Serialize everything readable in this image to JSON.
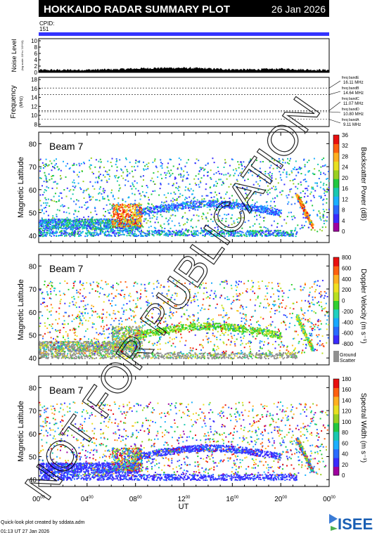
{
  "header": {
    "title": "HOKKAIDO RADAR SUMMARY PLOT",
    "date": "26 Jan 2026",
    "cpid_label": "CPID:",
    "cpid_value": "151"
  },
  "noise_panel": {
    "ylabel": "Noise Level",
    "ylabel_sub": "(log scale: 10^x / 10^10)",
    "yticks": [
      "10",
      "8",
      "6",
      "4",
      "2",
      "0"
    ]
  },
  "freq_panel": {
    "ylabel": "Frequency",
    "unit": "(MHz)",
    "yticks": [
      "18",
      "16",
      "14",
      "12",
      "10",
      "8"
    ],
    "bands": [
      {
        "name": "freq bandE",
        "value": "16.11 MHz"
      },
      {
        "name": "freq bandB",
        "value": "14.64 MHz"
      },
      {
        "name": "freq bandC",
        "value": "11.07 MHz"
      },
      {
        "name": "freq bandD",
        "value": "10.80 MHz"
      },
      {
        "name": "freq bandA",
        "value": "9.11 MHz"
      }
    ]
  },
  "panels": [
    {
      "beam": "Beam  7",
      "ylabel": "Magnetic Latitude",
      "yticks": [
        "80",
        "70",
        "60",
        "50",
        "40"
      ],
      "cbar_label": "Backscatter Power (dB)",
      "cbar_ticks": [
        "36",
        "32",
        "28",
        "24",
        "20",
        "16",
        "12",
        "8",
        "4",
        "0"
      ]
    },
    {
      "beam": "Beam  7",
      "ylabel": "Magnetic Latitude",
      "yticks": [
        "80",
        "70",
        "60",
        "50",
        "40"
      ],
      "cbar_label": "Doppler Velocity (m s⁻¹)",
      "cbar_ticks": [
        "800",
        "600",
        "400",
        "200",
        "0",
        "-200",
        "-400",
        "-600",
        "-800"
      ],
      "ground_scatter": [
        "Ground",
        "Scatter"
      ]
    },
    {
      "beam": "Beam  7",
      "ylabel": "Magnetic Latitude",
      "yticks": [
        "80",
        "70",
        "60",
        "50",
        "40"
      ],
      "cbar_label": "Spectral Width (m s⁻¹)",
      "cbar_ticks": [
        "180",
        "160",
        "140",
        "120",
        "100",
        "80",
        "60",
        "40",
        "20",
        "0"
      ]
    }
  ],
  "xaxis": {
    "label": "UT",
    "ticks": [
      {
        "h": "00",
        "m": "00"
      },
      {
        "h": "04",
        "m": "00"
      },
      {
        "h": "08",
        "m": "00"
      },
      {
        "h": "12",
        "m": "00"
      },
      {
        "h": "16",
        "m": "00"
      },
      {
        "h": "20",
        "m": "00"
      },
      {
        "h": "00",
        "m": "00"
      }
    ]
  },
  "watermark": "NOT FOR PUBLICATION",
  "footer": {
    "line1": "Quick-look plot created by sddata.adm",
    "line2": "01:13 UT 27 Jan 2026",
    "logo": "ISEE"
  },
  "chart_data": {
    "type": "heatmap",
    "title": "HOKKAIDO RADAR SUMMARY PLOT",
    "x_range_hours": [
      0,
      24
    ],
    "latitude_range": [
      37,
      85
    ],
    "panels": [
      "Backscatter Power (dB)",
      "Doppler Velocity (m s⁻¹)",
      "Spectral Width (m s⁻¹)"
    ],
    "colors": {
      "cpid_bar": "#3333ff",
      "ground_scatter": "#909090"
    }
  }
}
